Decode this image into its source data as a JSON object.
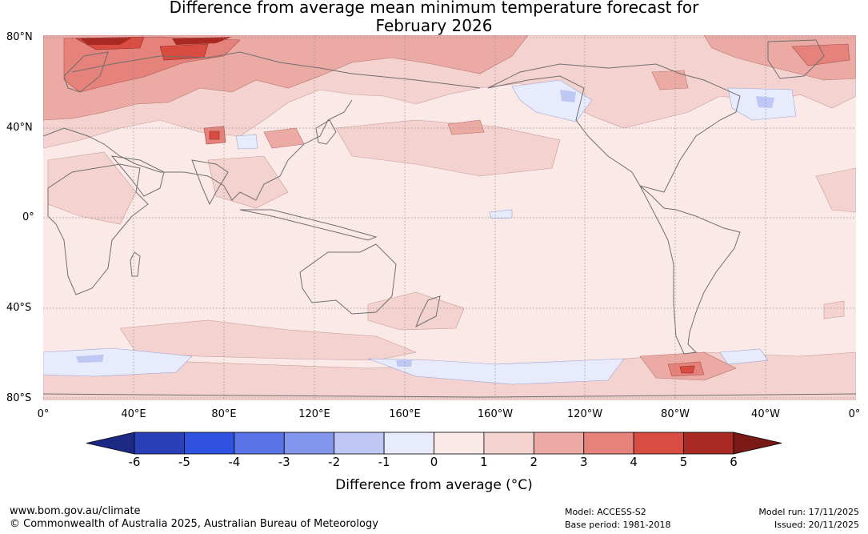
{
  "title": {
    "line1": "Difference from average mean minimum temperature forecast for",
    "line2": "February 2026"
  },
  "map": {
    "lat_labels": [
      "80°N",
      "40°N",
      "0°",
      "40°S",
      "80°S"
    ],
    "lon_labels": [
      "0°",
      "40°E",
      "80°E",
      "120°E",
      "160°E",
      "160°W",
      "120°W",
      "80°W",
      "40°W",
      "0°"
    ],
    "background_anomaly_class": "0 to 1",
    "coastline_color": "#6f6f6f",
    "grid_color": "#8a8a8a"
  },
  "colorbar": {
    "title": "Difference from average (°C)",
    "ticks": [
      "-6",
      "-5",
      "-4",
      "-3",
      "-2",
      "-1",
      "0",
      "1",
      "2",
      "3",
      "4",
      "5",
      "6"
    ],
    "colors": [
      "#1c2a84",
      "#2a40b8",
      "#3052e0",
      "#5a73e6",
      "#8396ec",
      "#bfc7f4",
      "#e8ebfb",
      "#fbe9e8",
      "#f4d2cf",
      "#ecaaa5",
      "#e5827c",
      "#d84c42",
      "#a82a22",
      "#7a1a16"
    ]
  },
  "footer": {
    "website": "www.bom.gov.au/climate",
    "copyright": "© Commonwealth of Australia 2025, Australian Bureau of Meteorology",
    "model": "Model: ACCESS-S2",
    "base_period": "Base period: 1981-2018",
    "model_run": "Model run: 17/11/2025",
    "issued": "Issued: 20/11/2025"
  }
}
